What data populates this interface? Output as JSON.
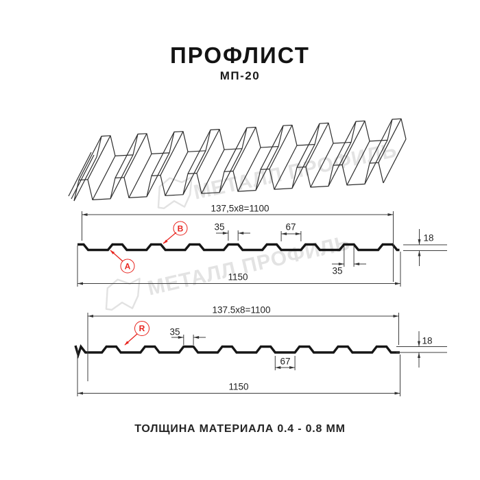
{
  "colors": {
    "accent_red": "#e8231d",
    "line_black": "#1a1a1a",
    "watermark_gray": "#e3e3e3"
  },
  "header": {
    "title": "ПРОФЛИСТ",
    "subtitle": "МП-20"
  },
  "watermark": {
    "brand": "МЕТАЛЛ ПРОФИЛЬ"
  },
  "profile_top": {
    "side_labels": {
      "a": "A",
      "b": "B"
    },
    "cover_width": "137,5x8=1100",
    "crest_width": "35",
    "valley_width": "67",
    "height": "18",
    "crest_width_bottom": "35",
    "total_width": "1150"
  },
  "profile_bottom": {
    "side_labels": {
      "r": "R"
    },
    "cover_width": "137.5x8=1100",
    "crest_width": "35",
    "valley_width": "67",
    "height": "18",
    "total_width": "1150"
  },
  "footer": {
    "note": "ТОЛЩИНА МАТЕРИАЛА 0.4 - 0.8 ММ"
  }
}
